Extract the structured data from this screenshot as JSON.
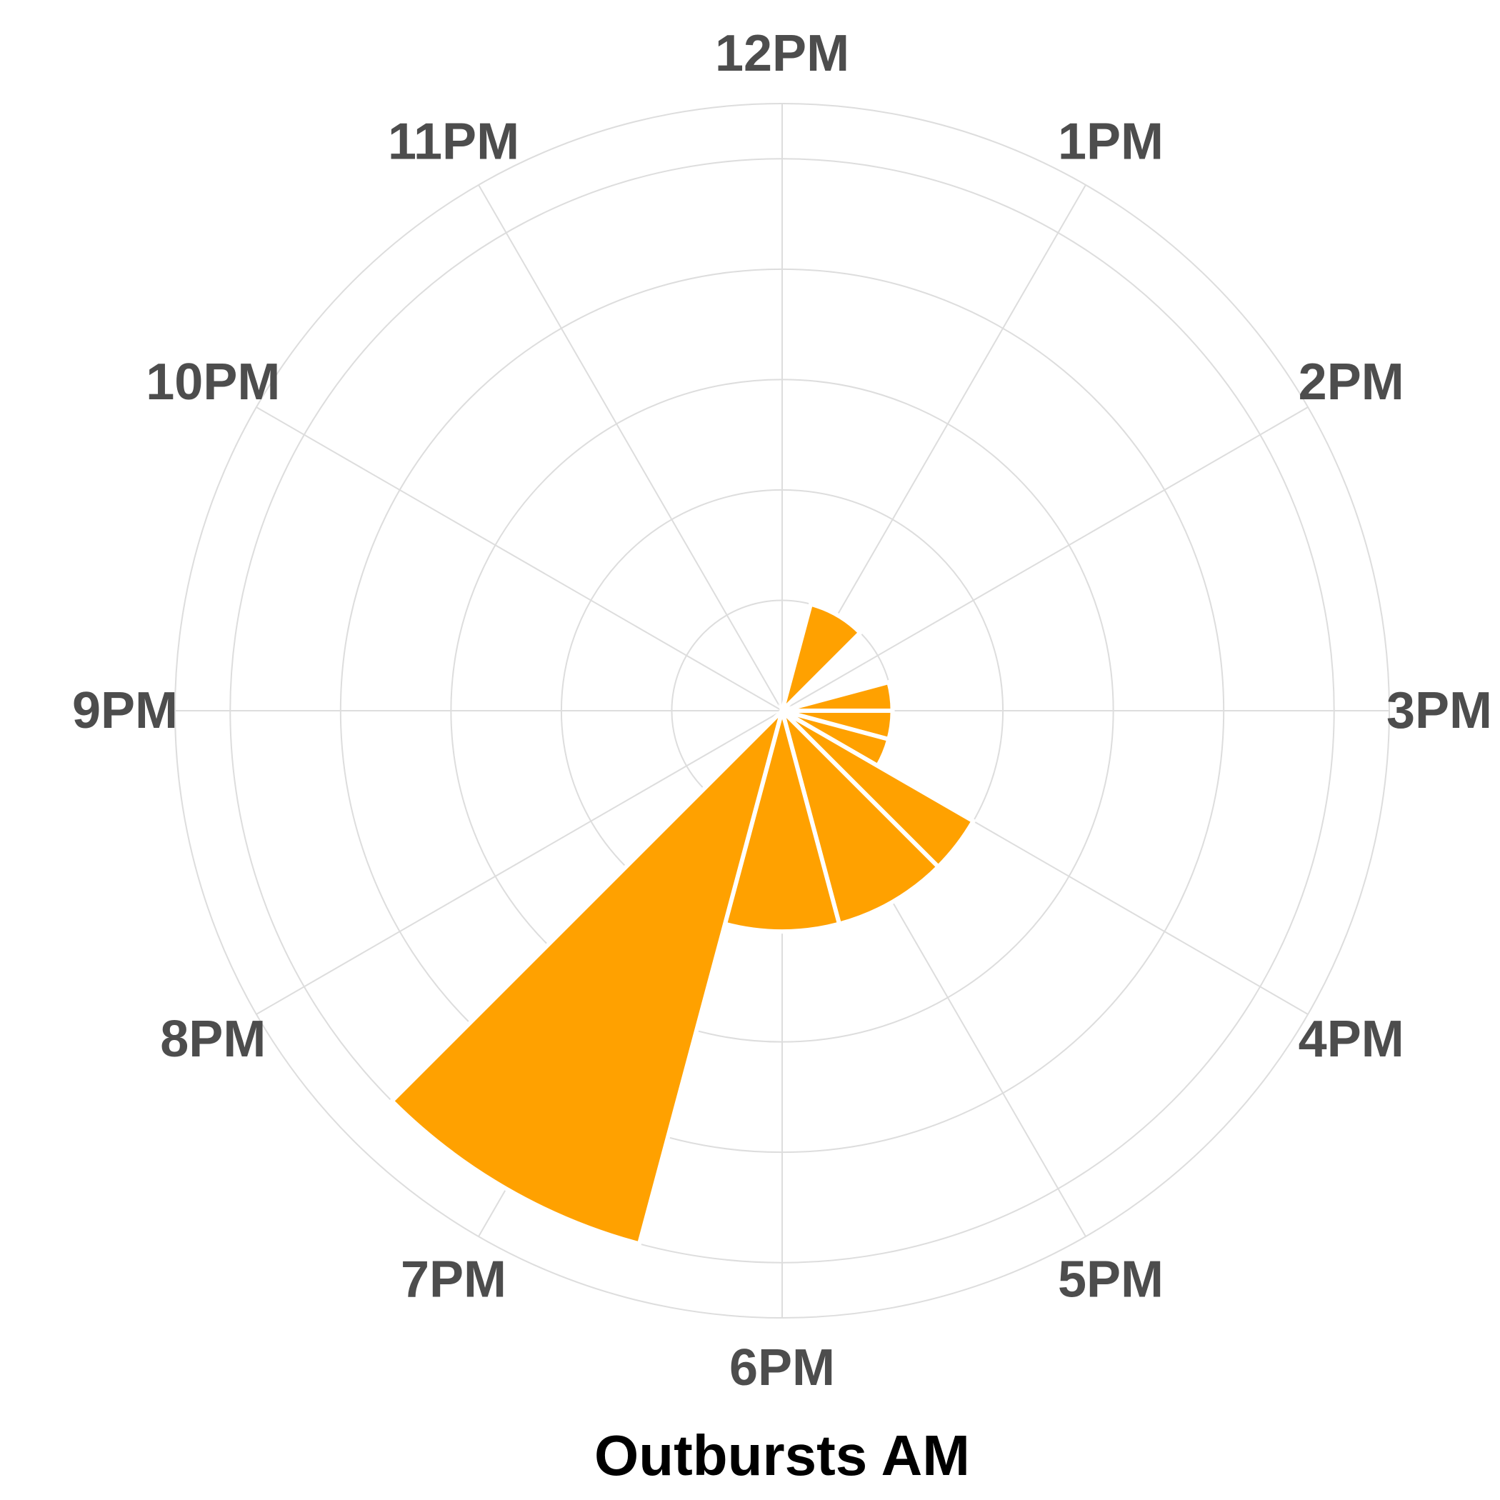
{
  "chart_data": {
    "type": "bar",
    "coord": "polar",
    "categories": [
      "12PM",
      "1PM",
      "2PM",
      "3PM",
      "4PM",
      "5PM",
      "6PM",
      "7PM",
      "8PM",
      "9PM",
      "10PM",
      "11PM"
    ],
    "segments": [
      {
        "start": 0.5,
        "end": 1.5,
        "value": 1.0
      },
      {
        "start": 2.5,
        "end": 3.0,
        "value": 1.0
      },
      {
        "start": 3.0,
        "end": 3.5,
        "value": 1.0
      },
      {
        "start": 3.5,
        "end": 4.0,
        "value": 1.0
      },
      {
        "start": 4.0,
        "end": 4.5,
        "value": 2.0
      },
      {
        "start": 4.5,
        "end": 5.5,
        "value": 2.0
      },
      {
        "start": 5.5,
        "end": 6.5,
        "value": 2.0
      },
      {
        "start": 6.5,
        "end": 7.5,
        "value": 5.0
      }
    ],
    "r_max": 5.5,
    "grid_rings": [
      1,
      2,
      3,
      4,
      5,
      5.5
    ],
    "bar_color": "#FFA100",
    "grid_color": "#DDDDDD",
    "xlabel": "Outbursts AM",
    "ylabel": "",
    "title": "",
    "grid": true,
    "legend": "none"
  }
}
